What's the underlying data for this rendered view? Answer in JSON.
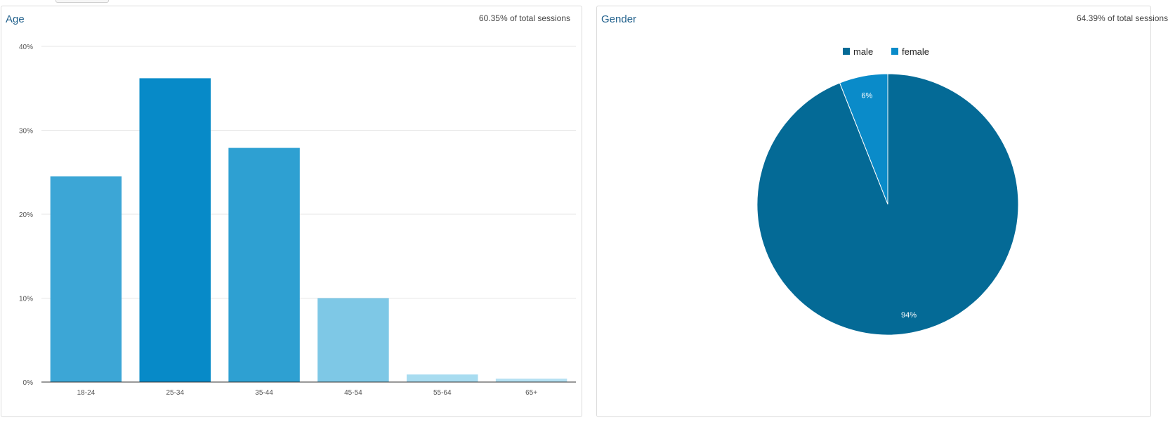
{
  "age_card": {
    "title": "Age",
    "subtitle": "60.35% of total sessions"
  },
  "gender_card": {
    "title": "Gender",
    "subtitle": "64.39% of total sessions"
  },
  "chart_data": [
    {
      "type": "bar",
      "title": "Age",
      "categories": [
        "18-24",
        "25-34",
        "35-44",
        "45-54",
        "55-64",
        "65+"
      ],
      "values": [
        24.5,
        36.2,
        27.9,
        10.0,
        0.9,
        0.4
      ],
      "colors": [
        "#3ca6d6",
        "#078ac8",
        "#2ea0d2",
        "#7ec8e6",
        "#a8dcf0",
        "#b4e0f2"
      ],
      "ylim": [
        0,
        40
      ],
      "yticks": [
        0,
        10,
        20,
        30,
        40
      ],
      "ytick_labels": [
        "0%",
        "10%",
        "20%",
        "30%",
        "40%"
      ],
      "grid": true
    },
    {
      "type": "pie",
      "title": "Gender",
      "labels": [
        "male",
        "female"
      ],
      "values": [
        94,
        6
      ],
      "slice_labels": [
        "94%",
        "6%"
      ],
      "colors": [
        "#046a96",
        "#0a8bc9"
      ],
      "legend": "top"
    }
  ]
}
